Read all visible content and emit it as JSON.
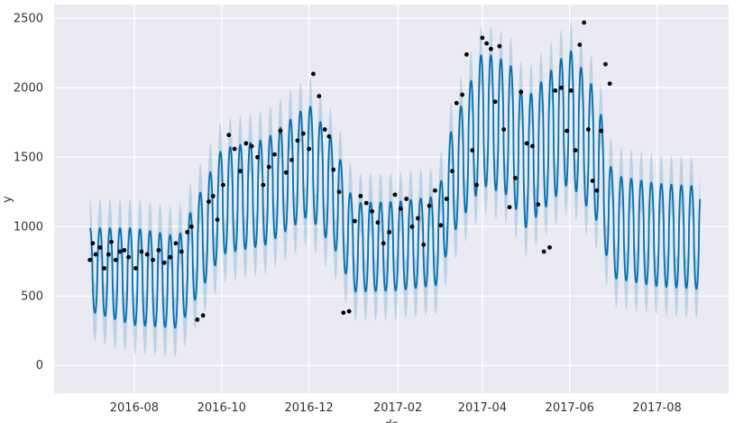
{
  "chart_data": {
    "type": "line",
    "title": "",
    "xlabel": "ds",
    "ylabel": "y",
    "x_ticks": [
      "2016-08",
      "2016-10",
      "2016-12",
      "2017-02",
      "2017-04",
      "2017-06",
      "2017-08"
    ],
    "y_ticks": [
      0,
      500,
      1000,
      1500,
      2000,
      2500
    ],
    "xlim": [
      "2016-06-06",
      "2017-09-20"
    ],
    "ylim": [
      -200,
      2600
    ],
    "grid": true,
    "background": "#eaeaf2",
    "colors": {
      "forecast": "#0072b2",
      "interval": "#0072b2",
      "observed": "#000000"
    },
    "forecast_range": [
      "2016-07-01",
      "2017-08-31"
    ],
    "observed_range": [
      "2016-07-01",
      "2017-06-30"
    ],
    "weekly_period_days": 7,
    "series": [
      {
        "role": "trend_forecast_points",
        "x": [
          "2016-07-01",
          "2016-08-01",
          "2016-09-01",
          "2016-10-01",
          "2016-11-01",
          "2016-12-01",
          "2016-12-20",
          "2017-01-01",
          "2017-02-01",
          "2017-03-01",
          "2017-03-10",
          "2017-04-01",
          "2017-04-20",
          "2017-05-01",
          "2017-06-01",
          "2017-06-20",
          "2017-07-01",
          "2017-08-01",
          "2017-08-31"
        ],
        "mid": [
          690,
          640,
          600,
          1180,
          1250,
          1480,
          1200,
          850,
          860,
          900,
          1300,
          1780,
          1700,
          1450,
          1800,
          1500,
          1000,
          940,
          920
        ],
        "amplitude": [
          300,
          350,
          330,
          380,
          380,
          400,
          380,
          320,
          320,
          320,
          380,
          480,
          480,
          460,
          480,
          460,
          370,
          370,
          370
        ]
      },
      {
        "role": "observed_points",
        "x": [
          "2016-07-01",
          "2016-07-03",
          "2016-07-05",
          "2016-07-08",
          "2016-07-11",
          "2016-07-14",
          "2016-07-16",
          "2016-07-19",
          "2016-07-22",
          "2016-07-25",
          "2016-07-28",
          "2016-08-02",
          "2016-08-06",
          "2016-08-10",
          "2016-08-14",
          "2016-08-18",
          "2016-08-22",
          "2016-08-26",
          "2016-08-30",
          "2016-09-03",
          "2016-09-07",
          "2016-09-10",
          "2016-09-14",
          "2016-09-18",
          "2016-09-22",
          "2016-09-25",
          "2016-09-28",
          "2016-10-02",
          "2016-10-06",
          "2016-10-10",
          "2016-10-14",
          "2016-10-18",
          "2016-10-22",
          "2016-10-26",
          "2016-10-30",
          "2016-11-03",
          "2016-11-07",
          "2016-11-11",
          "2016-11-15",
          "2016-11-19",
          "2016-11-23",
          "2016-11-27",
          "2016-12-01",
          "2016-12-04",
          "2016-12-08",
          "2016-12-12",
          "2016-12-15",
          "2016-12-18",
          "2016-12-22",
          "2016-12-25",
          "2016-12-29",
          "2017-01-02",
          "2017-01-06",
          "2017-01-10",
          "2017-01-14",
          "2017-01-18",
          "2017-01-22",
          "2017-01-26",
          "2017-01-30",
          "2017-02-03",
          "2017-02-07",
          "2017-02-11",
          "2017-02-15",
          "2017-02-19",
          "2017-02-23",
          "2017-02-27",
          "2017-03-03",
          "2017-03-07",
          "2017-03-11",
          "2017-03-14",
          "2017-03-18",
          "2017-03-21",
          "2017-03-25",
          "2017-03-28",
          "2017-04-01",
          "2017-04-04",
          "2017-04-07",
          "2017-04-10",
          "2017-04-13",
          "2017-04-16",
          "2017-04-20",
          "2017-04-24",
          "2017-04-28",
          "2017-05-02",
          "2017-05-06",
          "2017-05-10",
          "2017-05-14",
          "2017-05-18",
          "2017-05-22",
          "2017-05-26",
          "2017-05-30",
          "2017-06-02",
          "2017-06-05",
          "2017-06-08",
          "2017-06-11",
          "2017-06-14",
          "2017-06-17",
          "2017-06-20",
          "2017-06-23",
          "2017-06-26",
          "2017-06-29"
        ],
        "y": [
          760,
          880,
          800,
          850,
          700,
          800,
          890,
          760,
          820,
          830,
          780,
          700,
          820,
          800,
          760,
          830,
          740,
          780,
          880,
          820,
          960,
          1000,
          330,
          360,
          1180,
          1220,
          1050,
          1300,
          1660,
          1560,
          1400,
          1600,
          1580,
          1500,
          1300,
          1430,
          1520,
          1690,
          1390,
          1480,
          1620,
          1670,
          1560,
          2100,
          1940,
          1700,
          1650,
          1410,
          1250,
          380,
          390,
          1040,
          1220,
          1170,
          1110,
          1030,
          880,
          960,
          1230,
          1130,
          1200,
          1000,
          1060,
          870,
          1150,
          1260,
          1010,
          1200,
          1400,
          1890,
          1950,
          2240,
          1550,
          1300,
          2360,
          2320,
          2280,
          1900,
          2300,
          1700,
          1140,
          1350,
          1970,
          1600,
          1580,
          1160,
          820,
          850,
          1980,
          2000,
          1690,
          1980,
          1550,
          2310,
          2470,
          1700,
          1330,
          1260,
          1690,
          2170,
          2030
        ]
      }
    ]
  }
}
